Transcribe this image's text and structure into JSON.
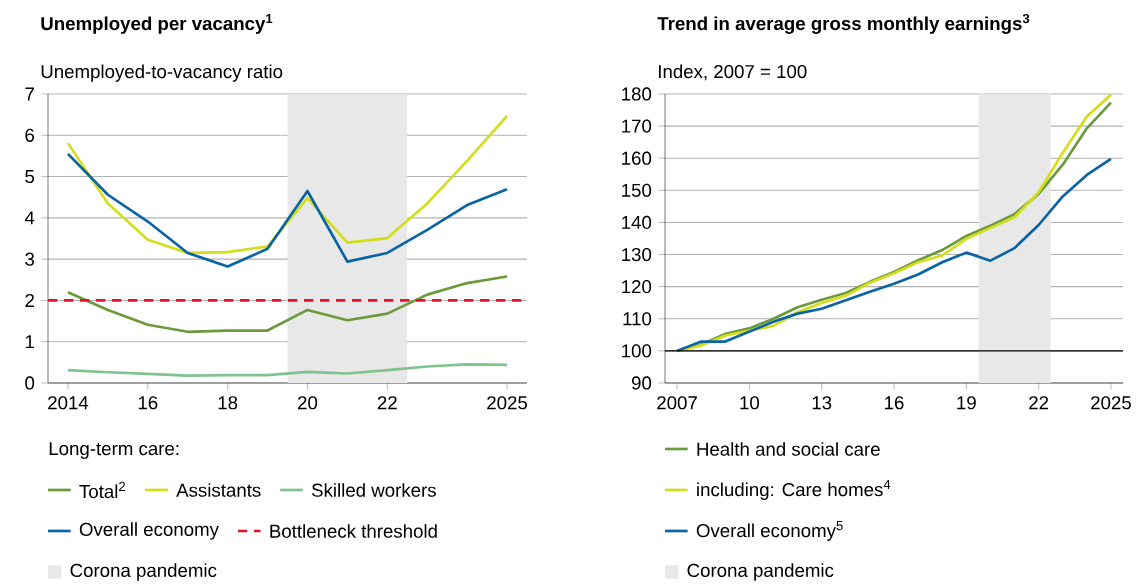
{
  "chart_data": [
    {
      "type": "line",
      "title": "Unemployed per vacancy$^{1}$",
      "ylabel": "Unemployed-to-vacancy ratio",
      "legend_title": "Long-term care:",
      "x": [
        2014,
        2015,
        2016,
        2017,
        2018,
        2019,
        2020,
        2021,
        2022,
        2023,
        2024,
        2025
      ],
      "xlim": [
        2013.5,
        2025.5
      ],
      "xticks": [
        {
          "value": 2014,
          "label": "2014"
        },
        {
          "value": 2016,
          "label": "16"
        },
        {
          "value": 2018,
          "label": "18"
        },
        {
          "value": 2020,
          "label": "20"
        },
        {
          "value": 2022,
          "label": "22"
        },
        {
          "value": 2025,
          "label": "2025"
        }
      ],
      "ylim": [
        0,
        7
      ],
      "yticks": [
        0,
        1,
        2,
        3,
        4,
        5,
        6,
        7
      ],
      "grid": "y",
      "legend": "bottom",
      "series": [
        {
          "name": "Total$^{2}$",
          "color": "#6a9a3a",
          "values": [
            2.2,
            1.77,
            1.41,
            1.24,
            1.27,
            1.27,
            1.77,
            1.52,
            1.68,
            2.14,
            2.42,
            2.58
          ]
        },
        {
          "name": "Assistants",
          "color": "#d4dd1a",
          "values": [
            5.81,
            4.35,
            3.47,
            3.15,
            3.17,
            3.31,
            4.48,
            3.4,
            3.51,
            4.35,
            5.38,
            6.47
          ]
        },
        {
          "name": "Skilled workers",
          "color": "#7fc48f",
          "values": [
            0.31,
            0.26,
            0.22,
            0.18,
            0.19,
            0.19,
            0.27,
            0.23,
            0.31,
            0.4,
            0.45,
            0.44
          ]
        },
        {
          "name": "Overall economy",
          "color": "#0a64a4",
          "values": [
            5.55,
            4.56,
            3.91,
            3.15,
            2.82,
            3.25,
            4.65,
            2.94,
            3.15,
            3.71,
            4.31,
            4.69
          ]
        }
      ],
      "ref_lines": [
        {
          "axis": "y",
          "value": 2,
          "label": "Bottleneck threshold",
          "color": "#e8112d",
          "line_style": "dashed"
        }
      ],
      "bands": [
        {
          "axis": "x",
          "from": 2019.5,
          "to": 2022.5,
          "label": "Corona pandemic",
          "color": "#e8e8e8"
        }
      ]
    },
    {
      "type": "line",
      "title": "Trend in average gross monthly earnings$^{3}$",
      "ylabel": "Index, 2007 = 100",
      "x": [
        2007,
        2008,
        2009,
        2010,
        2011,
        2012,
        2013,
        2014,
        2015,
        2016,
        2017,
        2018,
        2019,
        2020,
        2021,
        2022,
        2023,
        2024,
        2025
      ],
      "xlim": [
        2006.5,
        2025.5
      ],
      "xticks": [
        {
          "value": 2007,
          "label": "2007"
        },
        {
          "value": 2010,
          "label": "10"
        },
        {
          "value": 2013,
          "label": "13"
        },
        {
          "value": 2016,
          "label": "16"
        },
        {
          "value": 2019,
          "label": "19"
        },
        {
          "value": 2022,
          "label": "22"
        },
        {
          "value": 2025,
          "label": "2025"
        }
      ],
      "ylim": [
        90,
        180
      ],
      "yticks": [
        90,
        100,
        110,
        120,
        130,
        140,
        150,
        160,
        170,
        180
      ],
      "grid": "y",
      "legend": "bottom",
      "series": [
        {
          "name": "Health and social care",
          "color": "#6a9a3a",
          "values": [
            100,
            102,
            105.3,
            107,
            110,
            113.6,
            115.9,
            118,
            121.5,
            124.6,
            128.2,
            131.4,
            135.8,
            139,
            142.6,
            148.9,
            158,
            169.3,
            177.3
          ]
        },
        {
          "name": "including: Care homes$^{4}$",
          "color": "#d4dd1a",
          "values": [
            100,
            101.7,
            104.8,
            106.3,
            107.8,
            112.1,
            114.9,
            117.2,
            121.2,
            124.2,
            127.6,
            129.7,
            134.9,
            138.3,
            141.6,
            149.4,
            161.7,
            173,
            179.8
          ]
        },
        {
          "name": "Overall economy$^{5}$",
          "color": "#0a64a4",
          "values": [
            100,
            102.9,
            102.9,
            106,
            109.1,
            111.6,
            113.1,
            115.8,
            118.4,
            120.9,
            123.8,
            127.6,
            130.6,
            128.1,
            132,
            139.2,
            148.1,
            154.8,
            159.8
          ]
        }
      ],
      "ref_lines": [
        {
          "axis": "y",
          "value": 100,
          "color": "#000000"
        }
      ],
      "bands": [
        {
          "axis": "x",
          "from": 2019.5,
          "to": 2022.5,
          "label": "Corona pandemic",
          "color": "#e8e8e8"
        }
      ]
    }
  ]
}
